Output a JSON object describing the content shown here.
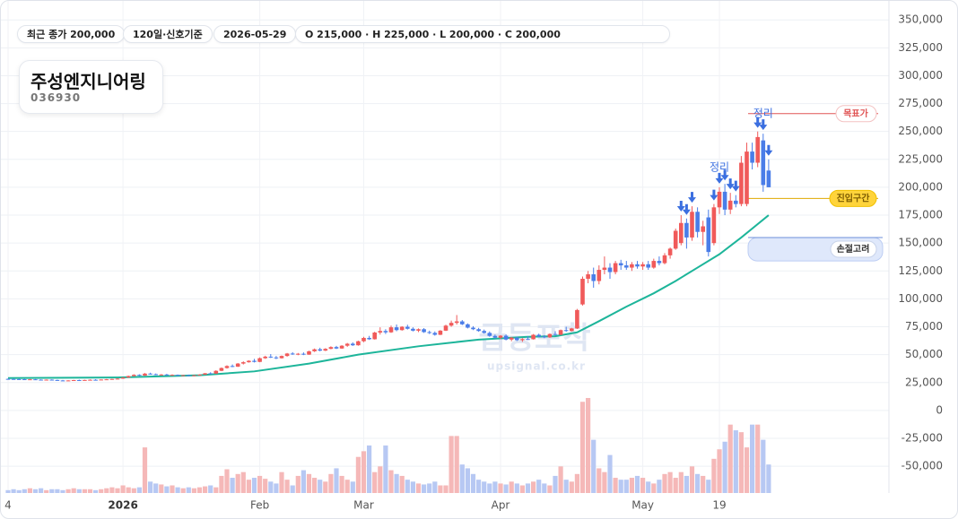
{
  "chart_data": {
    "type": "candlestick",
    "title": "주성엔지니어링",
    "subtitle": "036930",
    "badges": [
      "최근 종가 200,000",
      "120일·신호기준",
      "2026-05-29",
      "O 215,000 · H 225,000 · L 200,000 · C 200,000"
    ],
    "watermark": "급등포착",
    "watermark_sub": "upsignal.co.kr",
    "up_color": "#f05a5a",
    "down_color": "#4a7de8",
    "up_volume_color": "#f5b8b8",
    "down_volume_color": "#b7c8f3",
    "ylim": [
      -74000,
      359000
    ],
    "yticks": [
      {
        "value": 350000,
        "label": "350,000"
      },
      {
        "value": 325000,
        "label": "325,000"
      },
      {
        "value": 300000,
        "label": "300,000"
      },
      {
        "value": 275000,
        "label": "275,000"
      },
      {
        "value": 250000,
        "label": "250,000"
      },
      {
        "value": 225000,
        "label": "225,000"
      },
      {
        "value": 200000,
        "label": "200,000"
      },
      {
        "value": 175000,
        "label": "175,000"
      },
      {
        "value": 150000,
        "label": "150,000"
      },
      {
        "value": 125000,
        "label": "125,000"
      },
      {
        "value": 100000,
        "label": "100,000"
      },
      {
        "value": 75000,
        "label": "75,000"
      },
      {
        "value": 50000,
        "label": "50,000"
      },
      {
        "value": 25000,
        "label": "25,000"
      },
      0,
      {
        "value": -25000,
        "label": "-25,000"
      },
      {
        "value": -50000,
        "label": "-50,000"
      }
    ],
    "grid": true,
    "categories": [
      "4",
      null,
      null,
      null,
      null,
      null,
      null,
      null,
      null,
      null,
      null,
      null,
      null,
      null,
      null,
      null,
      null,
      null,
      null,
      null,
      null,
      "2026",
      null,
      null,
      null,
      null,
      null,
      null,
      null,
      null,
      null,
      null,
      null,
      null,
      null,
      null,
      null,
      null,
      null,
      null,
      null,
      null,
      null,
      null,
      null,
      null,
      "Feb",
      null,
      null,
      null,
      null,
      null,
      null,
      null,
      null,
      null,
      null,
      null,
      null,
      null,
      null,
      null,
      null,
      null,
      null,
      "Mar",
      null,
      null,
      null,
      null,
      null,
      null,
      null,
      null,
      null,
      null,
      null,
      null,
      null,
      null,
      null,
      null,
      null,
      null,
      null,
      null,
      null,
      null,
      null,
      null,
      "Apr",
      null,
      null,
      null,
      null,
      null,
      null,
      null,
      null,
      null,
      null,
      null,
      null,
      null,
      null,
      null,
      null,
      null,
      null,
      null,
      null,
      null,
      null,
      null,
      null,
      null,
      "May",
      null,
      null,
      null,
      null,
      null,
      null,
      null,
      null,
      null,
      null,
      null,
      null,
      null,
      "19",
      null,
      null,
      null,
      null,
      null,
      null,
      null,
      null,
      null
    ],
    "ohlc": [
      [
        28300,
        28600,
        28000,
        28200
      ],
      [
        28200,
        28500,
        27900,
        28100
      ],
      [
        28100,
        28400,
        27800,
        28000
      ],
      [
        28000,
        28300,
        27600,
        27800
      ],
      [
        27800,
        28200,
        27500,
        27900
      ],
      [
        27900,
        28100,
        27400,
        27600
      ],
      [
        27600,
        27900,
        27200,
        27400
      ],
      [
        27400,
        27800,
        27000,
        27600
      ],
      [
        27600,
        27900,
        27100,
        27300
      ],
      [
        27300,
        27600,
        26600,
        26900
      ],
      [
        26900,
        27300,
        26400,
        26700
      ],
      [
        26700,
        27100,
        26300,
        26900
      ],
      [
        26900,
        27400,
        26600,
        27200
      ],
      [
        27200,
        27600,
        26900,
        27000
      ],
      [
        27000,
        27500,
        26800,
        27300
      ],
      [
        27300,
        27800,
        27000,
        27500
      ],
      [
        27500,
        28000,
        27200,
        27300
      ],
      [
        27300,
        27900,
        27100,
        27700
      ],
      [
        27700,
        28200,
        27400,
        27900
      ],
      [
        27900,
        28400,
        27600,
        28200
      ],
      [
        28200,
        28800,
        27900,
        28500
      ],
      [
        28500,
        29800,
        28300,
        29500
      ],
      [
        29500,
        31200,
        29200,
        30800
      ],
      [
        30800,
        32500,
        30400,
        31900
      ],
      [
        31900,
        32400,
        30900,
        31200
      ],
      [
        31200,
        33500,
        31000,
        33000
      ],
      [
        33000,
        33800,
        32200,
        32500
      ],
      [
        32500,
        33100,
        31600,
        31900
      ],
      [
        31900,
        32600,
        31300,
        32200
      ],
      [
        32200,
        32800,
        31500,
        31700
      ],
      [
        31700,
        32300,
        31200,
        31900
      ],
      [
        31900,
        32200,
        31000,
        31300
      ],
      [
        31300,
        31900,
        30800,
        31600
      ],
      [
        31600,
        32100,
        31000,
        31200
      ],
      [
        31200,
        31800,
        30700,
        31500
      ],
      [
        31500,
        32400,
        31200,
        32100
      ],
      [
        32100,
        33600,
        31900,
        33300
      ],
      [
        33300,
        34200,
        32600,
        33000
      ],
      [
        33000,
        36000,
        32800,
        35500
      ],
      [
        35500,
        38500,
        35200,
        38000
      ],
      [
        38000,
        40500,
        37500,
        39800
      ],
      [
        39800,
        41200,
        38800,
        39200
      ],
      [
        39200,
        42500,
        39000,
        42000
      ],
      [
        42000,
        44000,
        41200,
        43200
      ],
      [
        43200,
        45000,
        42800,
        44500
      ],
      [
        44500,
        46200,
        43000,
        43500
      ],
      [
        43500,
        47500,
        43200,
        46800
      ],
      [
        46800,
        49000,
        46200,
        48200
      ],
      [
        48200,
        50500,
        47000,
        47500
      ],
      [
        47500,
        48800,
        46000,
        46800
      ],
      [
        46800,
        49200,
        46500,
        48800
      ],
      [
        48800,
        51500,
        48200,
        51000
      ],
      [
        51000,
        52200,
        49800,
        50200
      ],
      [
        50200,
        51500,
        49500,
        50800
      ],
      [
        50800,
        52000,
        49600,
        50000
      ],
      [
        50000,
        53500,
        49800,
        53000
      ],
      [
        53000,
        55500,
        52400,
        54800
      ],
      [
        54800,
        56200,
        53000,
        53600
      ],
      [
        53600,
        55800,
        53200,
        55200
      ],
      [
        55200,
        57500,
        54800,
        56800
      ],
      [
        56800,
        57800,
        55000,
        55500
      ],
      [
        55500,
        58500,
        55200,
        58000
      ],
      [
        58000,
        60500,
        57000,
        59800
      ],
      [
        59800,
        61000,
        57800,
        58400
      ],
      [
        58400,
        62500,
        58000,
        62000
      ],
      [
        62000,
        66000,
        61200,
        65000
      ],
      [
        65000,
        66800,
        63200,
        63800
      ],
      [
        63800,
        70500,
        63500,
        69800
      ],
      [
        69800,
        74500,
        68000,
        71200
      ],
      [
        71200,
        72800,
        68500,
        70000
      ],
      [
        70000,
        76000,
        69500,
        74500
      ],
      [
        74500,
        77000,
        71000,
        72000
      ],
      [
        72000,
        75500,
        71500,
        75000
      ],
      [
        75000,
        76800,
        72500,
        73200
      ],
      [
        73200,
        74500,
        70800,
        71500
      ],
      [
        71500,
        73500,
        70200,
        72800
      ],
      [
        72800,
        73800,
        69500,
        70200
      ],
      [
        70200,
        71500,
        68500,
        69500
      ],
      [
        69500,
        70800,
        67000,
        67800
      ],
      [
        67800,
        72000,
        67500,
        71500
      ],
      [
        71500,
        76800,
        71200,
        76000
      ],
      [
        76000,
        80500,
        75000,
        78500
      ],
      [
        78500,
        85500,
        77000,
        79800
      ],
      [
        79800,
        81000,
        76500,
        77200
      ],
      [
        77200,
        78000,
        73500,
        74200
      ],
      [
        74200,
        75500,
        72000,
        72800
      ],
      [
        72800,
        74000,
        70500,
        71200
      ],
      [
        71200,
        72500,
        68800,
        69500
      ],
      [
        69500,
        70800,
        66000,
        66800
      ],
      [
        66800,
        68000,
        64500,
        65200
      ],
      [
        65200,
        67500,
        63800,
        67000
      ],
      [
        67000,
        68200,
        62800,
        63500
      ],
      [
        63500,
        65800,
        62000,
        65200
      ],
      [
        65200,
        66000,
        62200,
        63000
      ],
      [
        63000,
        64800,
        61500,
        64000
      ],
      [
        64000,
        66500,
        63200,
        63800
      ],
      [
        63800,
        68500,
        63500,
        67800
      ],
      [
        67800,
        68800,
        65500,
        66200
      ],
      [
        66200,
        67500,
        64800,
        65500
      ],
      [
        65500,
        69000,
        65000,
        68500
      ],
      [
        68500,
        71000,
        67000,
        67800
      ],
      [
        67800,
        72500,
        67500,
        72000
      ],
      [
        72000,
        75000,
        70500,
        71200
      ],
      [
        71200,
        74000,
        70800,
        73500
      ],
      [
        73500,
        91000,
        73000,
        90000
      ],
      [
        95000,
        120000,
        94000,
        118000
      ],
      [
        118000,
        125000,
        114000,
        122000
      ],
      [
        122000,
        128000,
        110000,
        116000
      ],
      [
        116000,
        130000,
        113000,
        126000
      ],
      [
        126000,
        138000,
        122000,
        128000
      ],
      [
        128000,
        132000,
        118000,
        124000
      ],
      [
        124000,
        134000,
        122000,
        132000
      ],
      [
        132000,
        135000,
        126000,
        130000
      ],
      [
        130000,
        134000,
        126000,
        128000
      ],
      [
        128000,
        133000,
        125000,
        131000
      ],
      [
        131000,
        134000,
        127000,
        129000
      ],
      [
        129000,
        133000,
        126000,
        131000
      ],
      [
        131000,
        134000,
        126000,
        128000
      ],
      [
        128000,
        136000,
        127000,
        134000
      ],
      [
        134000,
        138000,
        130000,
        132000
      ],
      [
        132000,
        141000,
        131000,
        139000
      ],
      [
        139000,
        146000,
        136000,
        145000
      ],
      [
        145000,
        163000,
        144000,
        161000
      ],
      [
        150000,
        175000,
        148000,
        168000
      ],
      [
        168000,
        172000,
        145000,
        155000
      ],
      [
        155000,
        183000,
        152000,
        178000
      ],
      [
        178000,
        182000,
        155000,
        160000
      ],
      [
        160000,
        170000,
        148000,
        165000
      ],
      [
        173000,
        180000,
        138000,
        142000
      ],
      [
        150000,
        185000,
        148000,
        182000
      ],
      [
        182000,
        200000,
        176000,
        196000
      ],
      [
        196000,
        203000,
        175000,
        180000
      ],
      [
        180000,
        195000,
        176000,
        188000
      ],
      [
        188000,
        193000,
        182000,
        185000
      ],
      [
        185000,
        228000,
        183000,
        222000
      ],
      [
        185000,
        240000,
        183000,
        232000
      ],
      [
        232000,
        240000,
        216000,
        222000
      ],
      [
        222000,
        250000,
        218000,
        245000
      ],
      [
        242000,
        248000,
        196000,
        202000
      ],
      [
        215000,
        225000,
        200000,
        200000
      ]
    ],
    "volume": [
      3,
      4,
      3,
      4,
      5,
      4,
      5,
      3,
      4,
      4,
      3,
      4,
      5,
      4,
      4,
      4,
      3,
      4,
      5,
      6,
      5,
      8,
      6,
      5,
      6,
      48,
      12,
      10,
      9,
      7,
      8,
      6,
      5,
      6,
      5,
      6,
      7,
      8,
      6,
      18,
      25,
      16,
      20,
      22,
      14,
      16,
      18,
      15,
      12,
      10,
      22,
      14,
      8,
      18,
      24,
      20,
      16,
      14,
      12,
      20,
      26,
      18,
      14,
      12,
      38,
      44,
      50,
      22,
      28,
      50,
      24,
      20,
      18,
      14,
      12,
      10,
      9,
      10,
      12,
      8,
      8,
      60,
      60,
      30,
      26,
      20,
      14,
      12,
      10,
      12,
      10,
      9,
      12,
      10,
      8,
      10,
      12,
      14,
      10,
      8,
      18,
      28,
      14,
      12,
      20,
      96,
      100,
      56,
      26,
      22,
      40,
      16,
      14,
      14,
      16,
      18,
      16,
      12,
      10,
      14,
      20,
      22,
      16,
      22,
      18,
      28,
      20,
      18,
      14,
      36,
      46,
      54,
      72,
      66,
      64,
      48,
      72,
      72,
      56,
      30
    ],
    "ma": {
      "color": "#1db59a",
      "x": [
        0,
        20,
        35,
        45,
        55,
        64,
        75,
        86,
        95,
        100,
        104,
        108,
        113,
        118,
        122,
        126,
        130,
        134,
        139
      ],
      "values": [
        29000,
        29500,
        31500,
        35000,
        42000,
        50000,
        57500,
        63500,
        66000,
        66500,
        70000,
        80000,
        93000,
        105000,
        116000,
        128000,
        140000,
        155000,
        175000
      ]
    },
    "sell_signals": [
      123,
      124,
      125,
      129,
      130,
      131,
      132,
      133,
      137,
      138,
      139
    ],
    "annotations": [
      {
        "text": "정리",
        "index": 130
      },
      {
        "text": "정리",
        "index": 138
      }
    ],
    "levels": [
      {
        "name": "목표가",
        "value": 266000,
        "color": "#e05555"
      },
      {
        "name": "진입구간",
        "value": 190000,
        "color": "#e0a800"
      }
    ],
    "stop_zone": {
      "name": "손절고려",
      "range": [
        134000,
        155000
      ]
    }
  }
}
